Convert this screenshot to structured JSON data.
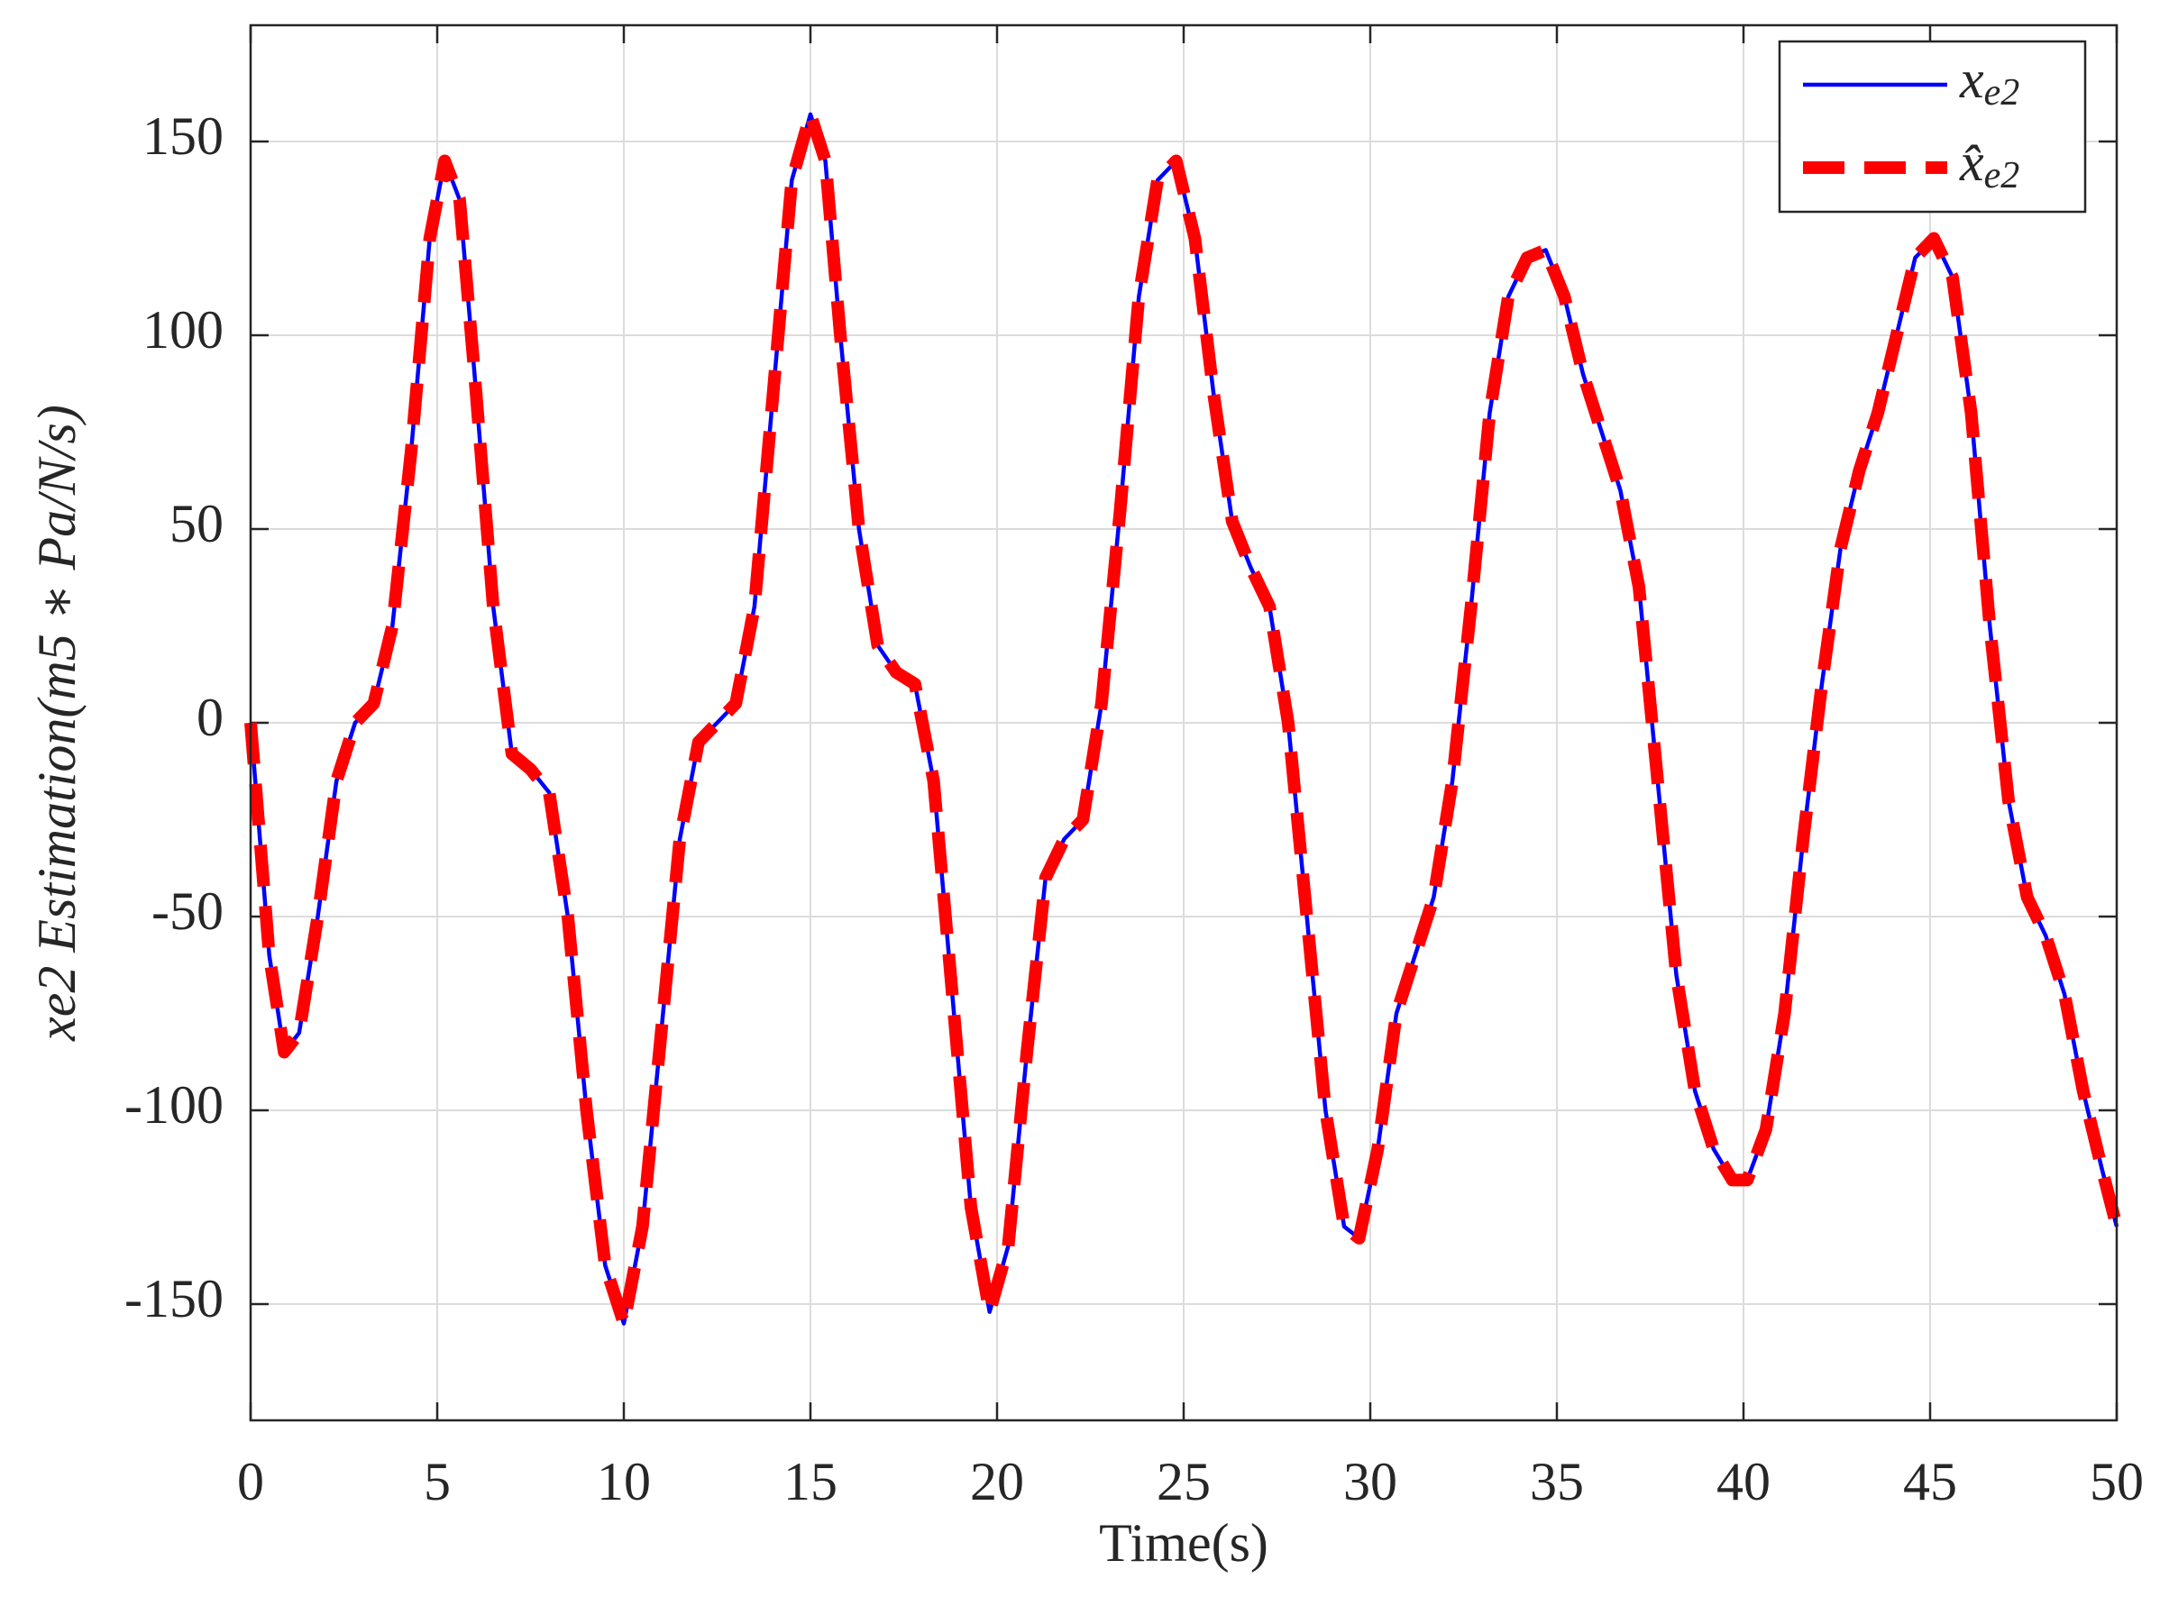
{
  "chart_data": {
    "type": "line",
    "xlabel": "Time(s)",
    "ylabel": "xe2 Estimation(m5 ∗ Pa/N/s)",
    "x": [
      0,
      0.5,
      0.9,
      1.3,
      1.8,
      2.3,
      2.8,
      3.3,
      3.8,
      4.3,
      4.8,
      5.2,
      5.6,
      6.0,
      6.5,
      7.0,
      7.5,
      8.0,
      8.5,
      9.0,
      9.5,
      10.0,
      10.5,
      11.0,
      11.5,
      12.0,
      12.5,
      13.0,
      13.5,
      14.0,
      14.5,
      15.0,
      15.4,
      15.8,
      16.3,
      16.8,
      17.3,
      17.8,
      18.3,
      18.8,
      19.3,
      19.8,
      20.3,
      20.8,
      21.3,
      21.8,
      22.3,
      22.8,
      23.3,
      23.8,
      24.3,
      24.8,
      25.3,
      25.8,
      26.3,
      26.8,
      27.3,
      27.8,
      28.3,
      28.8,
      29.3,
      29.7,
      30.2,
      30.7,
      31.2,
      31.7,
      32.2,
      32.7,
      33.2,
      33.7,
      34.2,
      34.7,
      35.2,
      35.7,
      36.2,
      36.7,
      37.2,
      37.7,
      38.2,
      38.7,
      39.2,
      39.7,
      40.1,
      40.6,
      41.1,
      41.6,
      42.1,
      42.6,
      43.1,
      43.6,
      44.1,
      44.6,
      45.1,
      45.6,
      46.1,
      46.6,
      47.1,
      47.6,
      48.1,
      48.6,
      49.1,
      49.6,
      50.0
    ],
    "series": [
      {
        "name": "xe2",
        "color": "#0000ff",
        "style": "solid",
        "values": [
          0,
          -60,
          -85,
          -80,
          -50,
          -15,
          0,
          5,
          25,
          70,
          125,
          145,
          135,
          90,
          30,
          -8,
          -12,
          -18,
          -50,
          -100,
          -140,
          -155,
          -130,
          -80,
          -30,
          -5,
          0,
          5,
          30,
          85,
          140,
          157,
          145,
          100,
          50,
          20,
          13,
          10,
          -15,
          -70,
          -125,
          -152,
          -135,
          -85,
          -40,
          -30,
          -25,
          5,
          55,
          110,
          140,
          145,
          125,
          85,
          52,
          40,
          30,
          0,
          -50,
          -100,
          -130,
          -133,
          -110,
          -75,
          -60,
          -45,
          -15,
          30,
          80,
          110,
          120,
          122,
          110,
          90,
          75,
          60,
          35,
          -15,
          -65,
          -95,
          -110,
          -118,
          -118,
          -105,
          -75,
          -30,
          10,
          45,
          65,
          80,
          100,
          120,
          125,
          115,
          80,
          25,
          -20,
          -45,
          -55,
          -70,
          -95,
          -115,
          -130
        ]
      },
      {
        "name": "x̂e2",
        "color": "#ff0000",
        "style": "dashed",
        "values": [
          0,
          -60,
          -85,
          -80,
          -50,
          -15,
          0,
          5,
          25,
          70,
          125,
          145,
          135,
          90,
          30,
          -8,
          -12,
          -18,
          -50,
          -100,
          -140,
          -155,
          -130,
          -80,
          -30,
          -5,
          0,
          5,
          30,
          85,
          140,
          157,
          145,
          100,
          50,
          20,
          13,
          10,
          -15,
          -70,
          -125,
          -152,
          -135,
          -85,
          -40,
          -30,
          -25,
          5,
          55,
          110,
          140,
          145,
          125,
          85,
          52,
          40,
          30,
          0,
          -50,
          -100,
          -130,
          -133,
          -110,
          -75,
          -60,
          -45,
          -15,
          30,
          80,
          110,
          120,
          122,
          110,
          90,
          75,
          60,
          35,
          -15,
          -65,
          -95,
          -110,
          -118,
          -118,
          -105,
          -75,
          -30,
          10,
          45,
          65,
          80,
          100,
          120,
          125,
          115,
          80,
          25,
          -20,
          -45,
          -55,
          -70,
          -95,
          -115,
          -130
        ]
      }
    ],
    "xlim": [
      0,
      50
    ],
    "xticks": [
      0,
      5,
      10,
      15,
      20,
      25,
      30,
      35,
      40,
      45,
      50
    ],
    "ylim": [
      -180,
      180
    ],
    "yticks": [
      -150,
      -100,
      -50,
      0,
      50,
      100,
      150
    ],
    "grid": true,
    "legend": "northeast"
  }
}
